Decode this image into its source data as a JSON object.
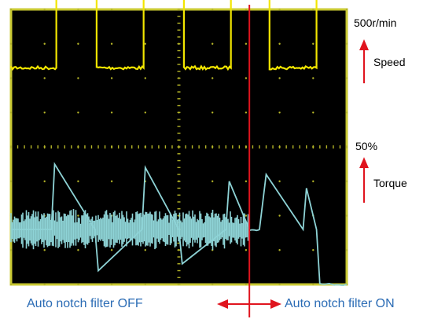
{
  "labels": {
    "speed_scale": "500r/min",
    "speed": "Speed",
    "torque_scale": "50%",
    "torque": "Torque",
    "filter_off": "Auto notch filter OFF",
    "filter_on": "Auto notch filter ON"
  },
  "colors": {
    "screen_bg": "#000000",
    "screen_border": "#c8c832",
    "grid_dot": "#b4b428",
    "speed_trace": "#f2e600",
    "torque_trace": "#8ed3d6",
    "marker": "#e0141e",
    "caption": "#2b6cb5"
  },
  "chart_data": {
    "type": "line",
    "title": "",
    "xlabel": "",
    "ylabel": "",
    "grid": true,
    "x_divisions": 10,
    "y_divisions": 8,
    "split_at_division": 7.1,
    "series": [
      {
        "name": "Speed",
        "scale_label": "500r/min",
        "x": [
          0,
          1.35,
          1.35,
          2.55,
          2.55,
          3.95,
          3.95,
          5.15,
          5.15,
          6.55,
          6.55,
          7.7,
          7.7,
          9.1,
          9.1,
          10
        ],
        "y": [
          2.3,
          2.3,
          6.3,
          6.3,
          2.3,
          2.3,
          6.3,
          6.3,
          2.3,
          2.3,
          6.3,
          6.3,
          2.3,
          2.3,
          6.3,
          6.3
        ]
      },
      {
        "name": "Torque",
        "scale_label": "50%",
        "x": [
          0,
          1.2,
          1.3,
          2.5,
          2.6,
          3.9,
          4.0,
          5.0,
          5.1,
          6.4,
          6.5,
          7.1,
          7.4,
          7.6,
          8.7,
          8.8,
          9.1,
          9.2,
          10
        ],
        "y": [
          -2.4,
          -2.4,
          -0.5,
          -2.4,
          -3.6,
          -2.4,
          -0.6,
          -2.4,
          -3.4,
          -2.4,
          -1.0,
          -2.4,
          -2.4,
          -0.8,
          -2.4,
          -1.2,
          -2.4,
          -4.0,
          -4.0
        ],
        "noisy_until_division": 7.1
      }
    ]
  }
}
